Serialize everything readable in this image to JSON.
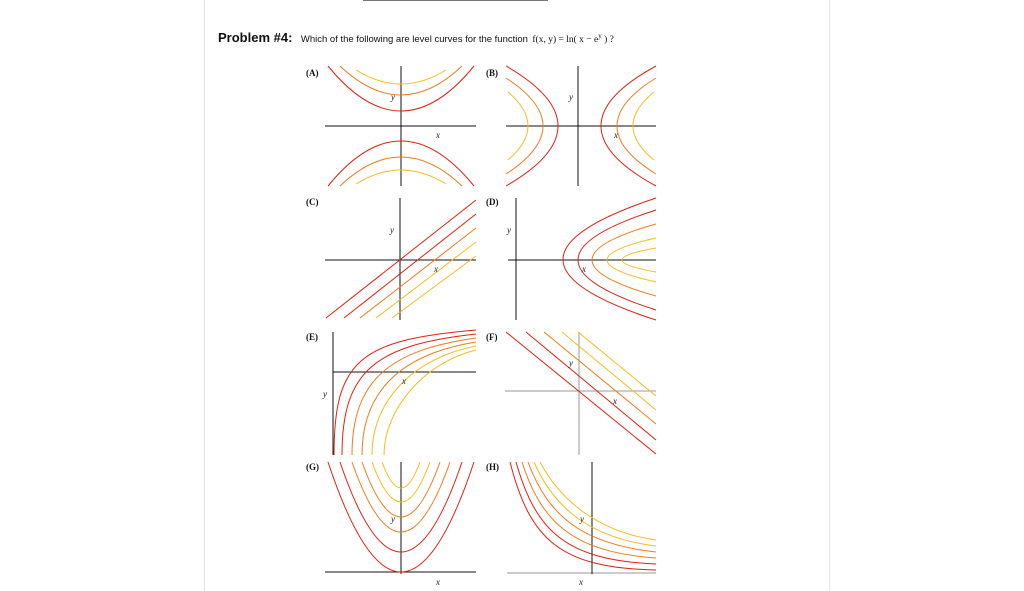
{
  "problem": {
    "label": "Problem #4:",
    "text": "Which of the following are level curves for the function",
    "function": "f(x, y) = ln( x − e",
    "function_exp": "y",
    "function_end": " ) ?"
  },
  "options": [
    {
      "id": "A",
      "label": "(A)",
      "xlabel": "x",
      "ylabel": "y"
    },
    {
      "id": "B",
      "label": "(B)",
      "xlabel": "x",
      "ylabel": "y"
    },
    {
      "id": "C",
      "label": "(C)",
      "xlabel": "x",
      "ylabel": "y"
    },
    {
      "id": "D",
      "label": "(D)",
      "xlabel": "x",
      "ylabel": "y"
    },
    {
      "id": "E",
      "label": "(E)",
      "xlabel": "x",
      "ylabel": "y"
    },
    {
      "id": "F",
      "label": "(F)",
      "xlabel": "x",
      "ylabel": "y"
    },
    {
      "id": "G",
      "label": "(G)",
      "xlabel": "x",
      "ylabel": "y"
    },
    {
      "id": "H",
      "label": "(H)",
      "xlabel": "x",
      "ylabel": "y"
    }
  ],
  "colors": {
    "red": "#e02010",
    "orange": "#f07a1a",
    "yellow": "#f5bc1c"
  }
}
